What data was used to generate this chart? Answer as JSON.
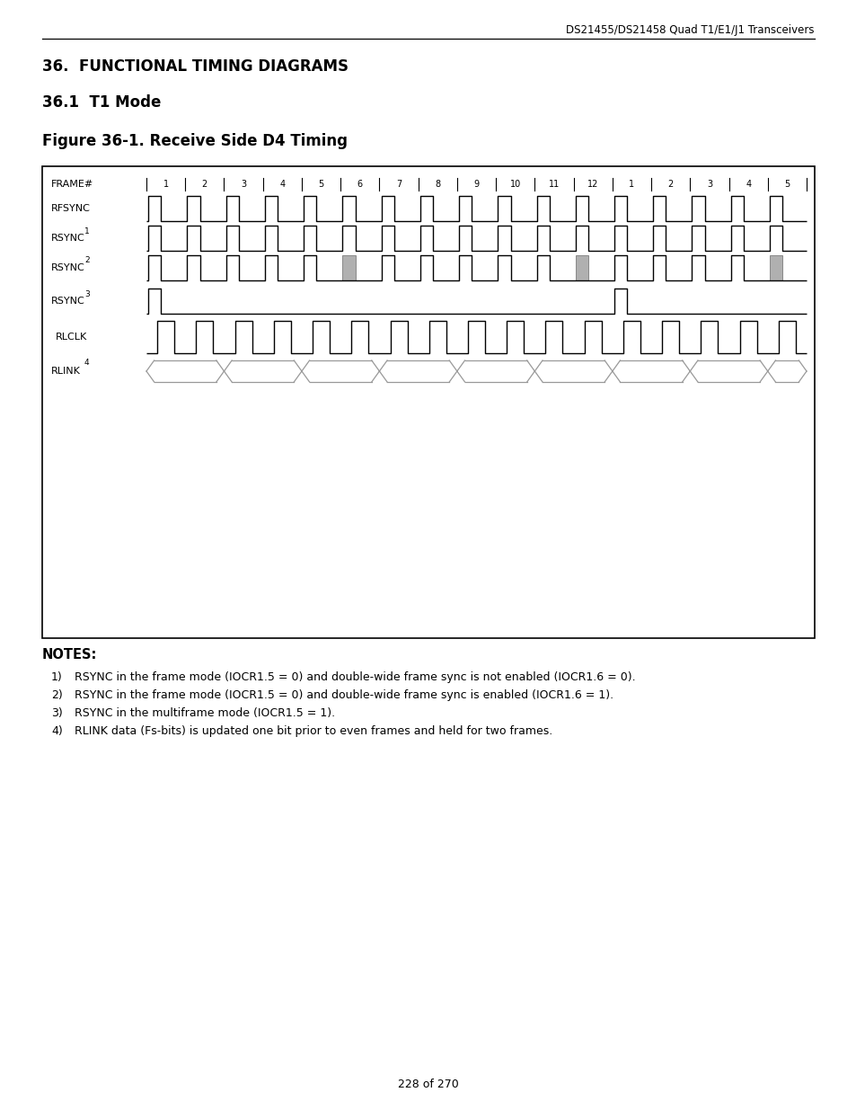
{
  "header_text": "DS21455/DS21458 Quad T1/E1/J1 Transceivers",
  "section_title": "36.  FUNCTIONAL TIMING DIAGRAMS",
  "subsection_title": "36.1  T1 Mode",
  "figure_title": "Figure 36-1. Receive Side D4 Timing",
  "frame_numbers": [
    "1",
    "2",
    "3",
    "4",
    "5",
    "6",
    "7",
    "8",
    "9",
    "10",
    "11",
    "12",
    "1",
    "2",
    "3",
    "4",
    "5"
  ],
  "notes_title": "NOTES:",
  "notes": [
    "RSYNC in the frame mode (IOCR1.5 = 0) and double-wide frame sync is not enabled (IOCR1.6 = 0).",
    "RSYNC in the frame mode (IOCR1.5 = 0) and double-wide frame sync is enabled (IOCR1.6 = 1).",
    "RSYNC in the multiframe mode (IOCR1.5 = 1).",
    "RLINK data (Fs-bits) is updated one bit prior to even frames and held for two frames."
  ],
  "page_text": "228 of 270",
  "bg_color": "#ffffff",
  "line_color": "#000000",
  "gray_fill": "#b0b0b0",
  "gray_line": "#888888",
  "rlink_color": "#999999"
}
